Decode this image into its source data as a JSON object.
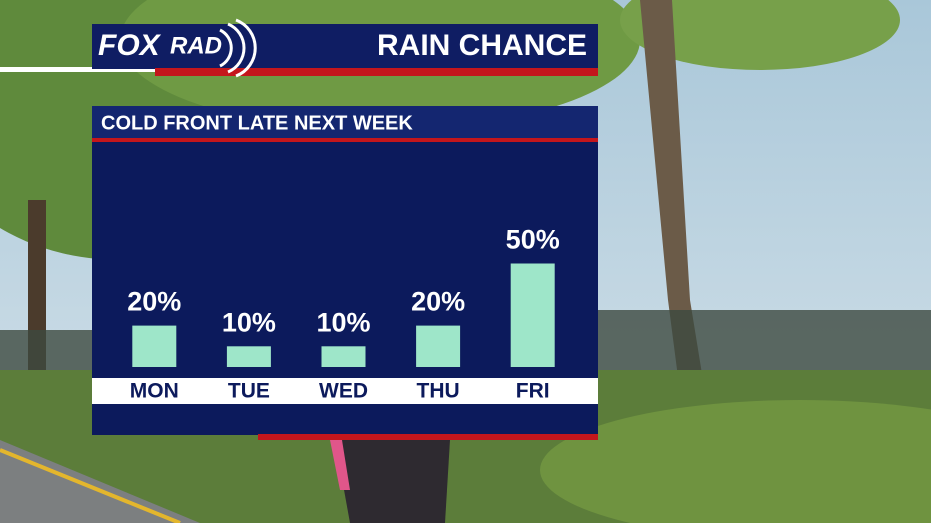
{
  "logo": {
    "fox": "FOX",
    "rad": "RAD"
  },
  "chart_data": {
    "type": "bar",
    "title": "RAIN CHANCE",
    "subtitle": "COLD FRONT LATE NEXT WEEK",
    "categories": [
      "MON",
      "TUE",
      "WED",
      "THU",
      "FRI"
    ],
    "values": [
      20,
      10,
      10,
      20,
      50
    ],
    "value_labels": [
      "20%",
      "10%",
      "10%",
      "20%",
      "50%"
    ],
    "color": "#9ee6c9"
  }
}
